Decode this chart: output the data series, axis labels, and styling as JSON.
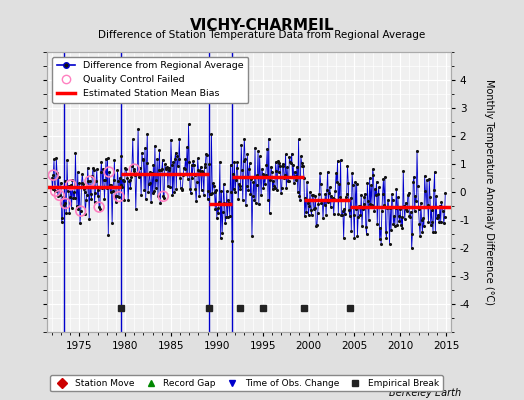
{
  "title": "VICHY-CHARMEIL",
  "subtitle": "Difference of Station Temperature Data from Regional Average",
  "ylabel": "Monthly Temperature Anomaly Difference (°C)",
  "credit": "Berkeley Earth",
  "xlim": [
    1971.5,
    2015.5
  ],
  "ylim": [
    -5,
    5
  ],
  "yticks": [
    -4,
    -3,
    -2,
    -1,
    0,
    1,
    2,
    3,
    4
  ],
  "xticks": [
    1975,
    1980,
    1985,
    1990,
    1995,
    2000,
    2005,
    2010,
    2015
  ],
  "bg_color": "#e0e0e0",
  "plot_bg": "#f0f0f0",
  "grid_color": "#ffffff",
  "line_color": "#0000cc",
  "marker_color": "#111111",
  "bias_color": "#ff0000",
  "qc_color": "#ff80c0",
  "vertical_lines_blue": [
    1973.3,
    1979.5,
    1989.2,
    1991.7
  ],
  "empirical_breaks": [
    1979.5,
    1989.2,
    1992.5,
    1995.0,
    1999.5,
    2004.5
  ],
  "bias_segments": [
    {
      "x": [
        1971.5,
        1979.5
      ],
      "y": [
        0.18,
        0.18
      ]
    },
    {
      "x": [
        1979.5,
        1989.2
      ],
      "y": [
        0.65,
        0.65
      ]
    },
    {
      "x": [
        1989.2,
        1991.7
      ],
      "y": [
        -0.42,
        -0.42
      ]
    },
    {
      "x": [
        1991.7,
        1999.5
      ],
      "y": [
        0.52,
        0.52
      ]
    },
    {
      "x": [
        1999.5,
        2004.5
      ],
      "y": [
        -0.28,
        -0.28
      ]
    },
    {
      "x": [
        2004.5,
        2015.5
      ],
      "y": [
        -0.52,
        -0.52
      ]
    }
  ],
  "seed_data": 42,
  "seed_qc": 7
}
